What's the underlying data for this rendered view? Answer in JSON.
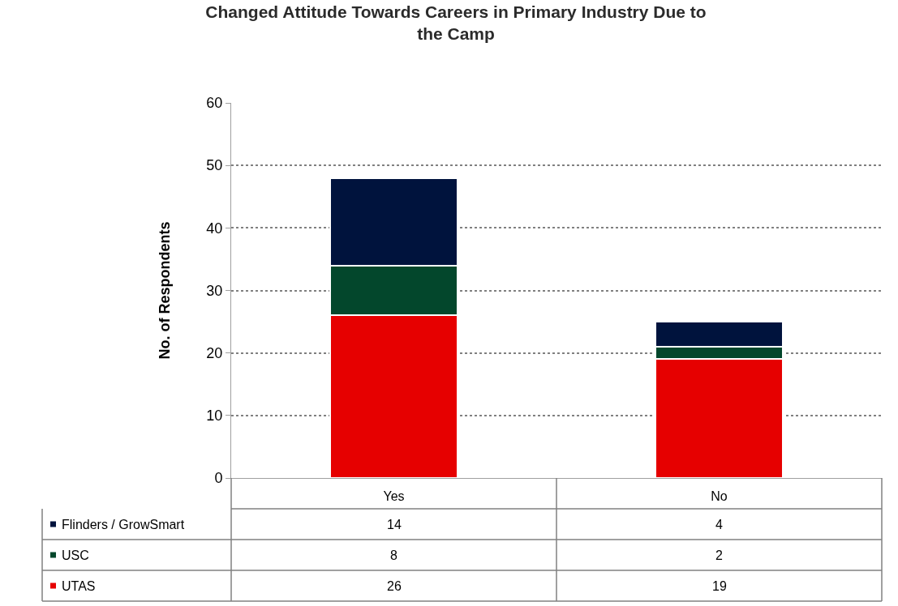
{
  "chart_data": {
    "type": "bar",
    "title": "Changed Attitude Towards Careers in Primary Industry Due to the Camp",
    "ylabel": "No. of Respondents",
    "categories": [
      "Yes",
      "No"
    ],
    "series": [
      {
        "name": "UTAS",
        "color": "#e60000",
        "values": [
          26,
          19
        ]
      },
      {
        "name": "USC",
        "color": "#03472c",
        "values": [
          8,
          2
        ]
      },
      {
        "name": "Flinders / GrowSmart",
        "color": "#00133d",
        "values": [
          14,
          4
        ]
      }
    ],
    "stacked": true,
    "ylim": [
      0,
      60
    ],
    "yticks": [
      0,
      10,
      20,
      30,
      40,
      50,
      60
    ],
    "grid": "y",
    "data_labels": true,
    "legend": "bottom left"
  }
}
